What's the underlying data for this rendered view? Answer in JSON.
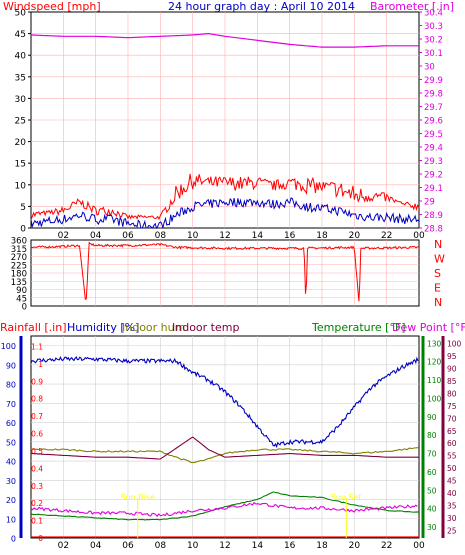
{
  "header": {
    "left_label": "Windspeed [mph]",
    "title": "24 hour graph day : April 10 2014",
    "right_label": "Barometer [.in]"
  },
  "colors": {
    "wind": "#ff0000",
    "gust_avg": "#0000c0",
    "barometer": "#e000e0",
    "humidity": "#0000c0",
    "indoor_hum": "#808000",
    "indoor_temp": "#800040",
    "temperature": "#008000",
    "dewpoint": "#e000e0",
    "rain": "#ff0000",
    "sun": "#ffff00"
  },
  "chart_data": [
    {
      "type": "line",
      "name": "windspeed-barometer",
      "x_ticks": [
        "02",
        "04",
        "06",
        "08",
        "10",
        "12",
        "14",
        "16",
        "18",
        "20",
        "22",
        "00"
      ],
      "y_left_ticks": [
        "0",
        "5",
        "10",
        "15",
        "20",
        "25",
        "30",
        "35",
        "40",
        "45",
        "50"
      ],
      "y_right_ticks": [
        "28.8",
        "28.9",
        "29",
        "29.1",
        "29.2",
        "29.3",
        "29.4",
        "29.5",
        "29.6",
        "29.7",
        "29.8",
        "29.9",
        "30",
        "30.1",
        "30.2",
        "30.3",
        "30.4"
      ],
      "ylim_left": [
        0,
        50
      ],
      "ylim_right": [
        28.8,
        30.4
      ],
      "xlim_hours": [
        0,
        24
      ],
      "series": [
        {
          "key": "wind",
          "values_hours": [
            0,
            1,
            2,
            3,
            4,
            5,
            6,
            7,
            8,
            9,
            10,
            11,
            12,
            13,
            14,
            15,
            16,
            17,
            18,
            19,
            20,
            21,
            22,
            23,
            24
          ],
          "values": [
            2,
            3,
            3,
            5,
            3,
            3,
            2,
            2,
            2,
            6,
            9,
            9,
            9,
            8.5,
            9,
            8.5,
            9,
            8,
            8,
            7,
            5,
            6,
            6,
            5,
            4
          ],
          "gust_values": [
            4,
            4,
            5,
            7,
            5,
            5,
            3,
            3,
            3,
            10,
            13,
            12,
            12,
            12,
            12,
            11,
            12,
            12,
            11,
            11,
            10,
            9,
            8,
            6,
            6
          ]
        },
        {
          "key": "gust_avg",
          "values_hours": [
            0,
            1,
            2,
            3,
            4,
            5,
            6,
            7,
            8,
            9,
            10,
            11,
            12,
            13,
            14,
            15,
            16,
            17,
            18,
            19,
            20,
            21,
            22,
            23,
            24
          ],
          "values": [
            1,
            1.5,
            2,
            3,
            2,
            2,
            1,
            0.5,
            0.5,
            3,
            5,
            5.5,
            6,
            6,
            6,
            5.5,
            6,
            5,
            4.5,
            4,
            3,
            2.5,
            2.5,
            2,
            2
          ]
        },
        {
          "key": "barometer",
          "values_hours": [
            0,
            2,
            4,
            6,
            8,
            10,
            11,
            12,
            14,
            16,
            18,
            20,
            22,
            24
          ],
          "values": [
            30.23,
            30.22,
            30.22,
            30.21,
            30.22,
            30.23,
            30.24,
            30.22,
            30.19,
            30.16,
            30.14,
            30.14,
            30.15,
            30.15
          ]
        }
      ]
    },
    {
      "type": "line",
      "name": "wind-direction",
      "x_ticks": [
        "02",
        "04",
        "06",
        "08",
        "10",
        "12",
        "14",
        "16",
        "18",
        "20",
        "22",
        "00"
      ],
      "y_ticks": [
        "0",
        "45",
        "90",
        "135",
        "180",
        "225",
        "270",
        "315",
        "360"
      ],
      "compass_labels": [
        "N",
        "W",
        "S",
        "E",
        "N"
      ],
      "ylim": [
        0,
        360
      ],
      "values_hours": [
        0,
        2,
        3,
        3.4,
        3.6,
        4,
        6,
        8,
        9,
        12,
        15,
        16.9,
        17,
        17.1,
        20,
        20.3,
        20.4,
        24
      ],
      "values": [
        320,
        325,
        330,
        5,
        340,
        330,
        330,
        335,
        320,
        315,
        315,
        315,
        5,
        315,
        320,
        5,
        315,
        320
      ]
    },
    {
      "type": "line",
      "name": "rain-humidity-temperature",
      "x_ticks": [
        "02",
        "04",
        "06",
        "08",
        "10",
        "12",
        "14",
        "16",
        "18",
        "20",
        "22",
        "00"
      ],
      "legend": [
        "Rainfall [.in]",
        "Humidity [%]",
        "Indoor hum",
        "Indoor temp",
        "Temperature [°F]",
        "Dew Point [°F]"
      ],
      "rain_ticks": [
        "0",
        "0.1",
        "0.2",
        "0.3",
        "0.4",
        "0.5",
        "0.6",
        "0.7",
        "0.8",
        "0.9",
        "1",
        "1.1"
      ],
      "humidity_ticks": [
        "0",
        "10",
        "20",
        "30",
        "40",
        "50",
        "60",
        "70",
        "80",
        "90",
        "100"
      ],
      "temp_ticks": [
        "30",
        "40",
        "50",
        "60",
        "70",
        "80",
        "90",
        "100",
        "110",
        "120",
        "130"
      ],
      "dew_ticks": [
        "25",
        "30",
        "35",
        "40",
        "45",
        "50",
        "55",
        "60",
        "65",
        "70",
        "75",
        "80",
        "85",
        "90",
        "95",
        "100"
      ],
      "sun_labels": {
        "rise": "Sun Rise",
        "set": "Sun Set",
        "rise_hour": 6.6,
        "set_hour": 19.5
      },
      "humidity": {
        "hours": [
          0,
          2,
          4,
          6,
          8,
          9,
          10,
          11,
          12,
          13,
          14,
          15,
          16,
          17,
          18,
          19,
          20,
          21,
          22,
          23,
          24
        ],
        "values": [
          92,
          93,
          93,
          92,
          92,
          92,
          86,
          82,
          76,
          68,
          58,
          48,
          50,
          50,
          50,
          58,
          68,
          78,
          84,
          89,
          93
        ]
      },
      "indoor_hum": {
        "hours": [
          0,
          2,
          4,
          6,
          8,
          9,
          10,
          11,
          12,
          14,
          16,
          18,
          20,
          22,
          24
        ],
        "values": [
          46,
          46,
          45,
          45,
          45,
          42,
          39,
          41,
          44,
          46,
          46,
          45,
          44,
          45,
          47
        ]
      },
      "indoor_temp": {
        "hours": [
          0,
          2,
          4,
          6,
          8,
          9,
          10,
          11,
          12,
          14,
          16,
          18,
          20,
          22,
          24
        ],
        "values": [
          70,
          69,
          68,
          68,
          67,
          73,
          79,
          72,
          68,
          69,
          70,
          69,
          69,
          68,
          68
        ]
      },
      "temperature": {
        "hours": [
          0,
          2,
          4,
          6,
          8,
          10,
          12,
          14,
          15,
          16,
          18,
          19,
          20,
          22,
          24
        ],
        "values": [
          37,
          36,
          35,
          34,
          34,
          36,
          41,
          45,
          49,
          47,
          46,
          44,
          42,
          39,
          38
        ]
      },
      "dewpoint": {
        "hours": [
          0,
          2,
          4,
          6,
          8,
          10,
          12,
          14,
          16,
          18,
          20,
          22,
          24
        ],
        "values": [
          34,
          33,
          32,
          32,
          31,
          33,
          34,
          36,
          34,
          34,
          33,
          34,
          35
        ]
      }
    }
  ]
}
